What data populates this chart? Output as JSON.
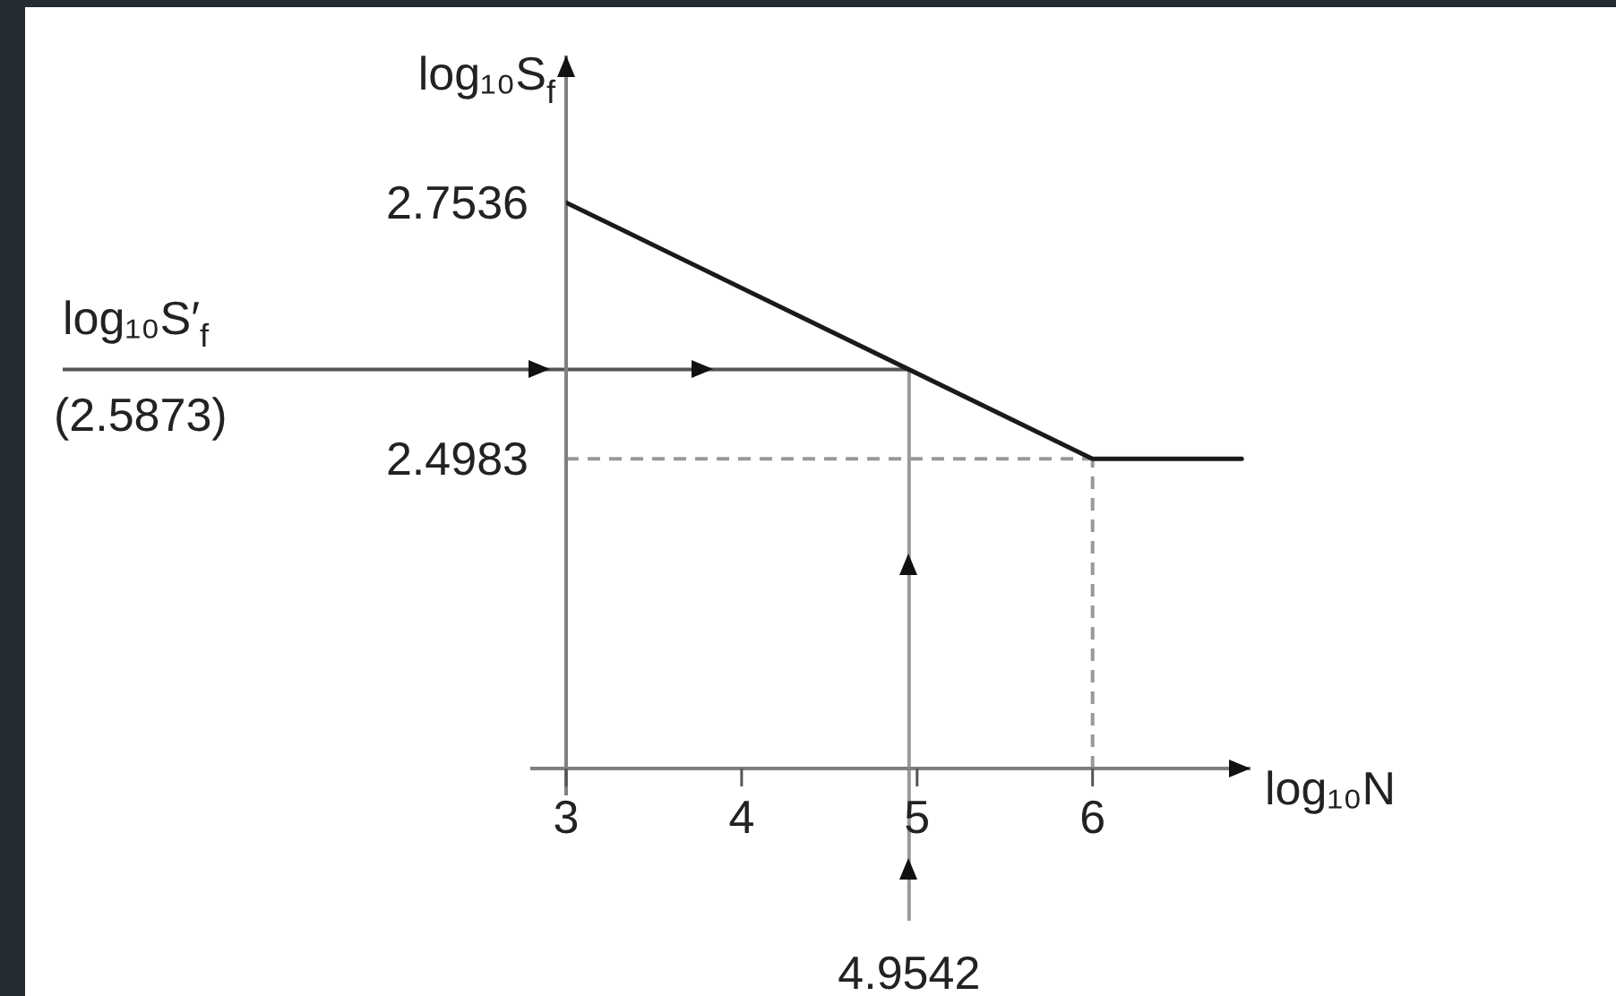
{
  "chart_data": {
    "type": "line",
    "xlabel": "log₁₀N",
    "ylabel": "log₁₀S$_{f}$",
    "x": [
      3,
      6,
      6.85
    ],
    "values": [
      2.7536,
      2.4983,
      2.4983
    ],
    "color": "#1a1a1a",
    "xlim": [
      3,
      6.9
    ],
    "xticks": [
      3,
      4,
      5,
      6
    ],
    "ylim": [
      2.19,
      2.9
    ],
    "yticks": [
      2.7536,
      2.4983
    ],
    "marker": "none",
    "line_style": "solid",
    "ref_lines": [
      {
        "axis": "y",
        "value": 2.5873,
        "label": "log₁₀S′$_{f}$",
        "color": "#555555",
        "line_style": "solid"
      },
      {
        "axis": "x",
        "value": 4.9542,
        "label": "4.9542",
        "color": "#9a9a9a",
        "line_style": "solid"
      },
      {
        "axis": "y",
        "value": 2.4983,
        "color": "#999999",
        "line_style": "dashed"
      },
      {
        "axis": "x",
        "value": 6,
        "color": "#999999",
        "line_style": "dashed"
      }
    ],
    "annotations": [
      {
        "text": "(2.5873)",
        "y": 2.5873
      }
    ]
  }
}
